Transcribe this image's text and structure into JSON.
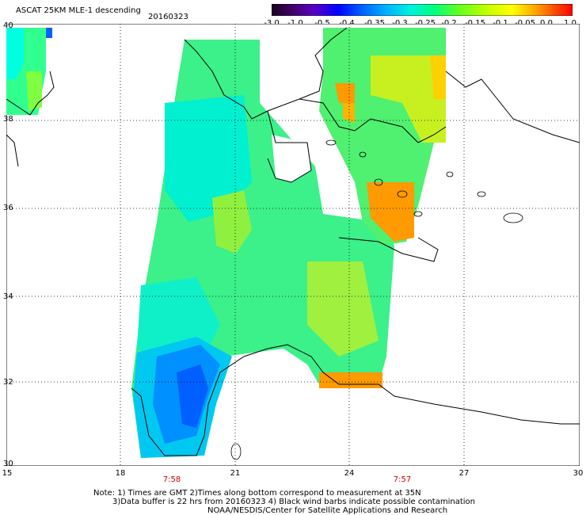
{
  "header": {
    "title": "ASCAT 25KM MLE-1 descending",
    "date": "20160323"
  },
  "colorbar": {
    "labels": [
      "-3.0",
      "-1.0",
      "-0.5",
      "-0.4",
      "-0.35",
      "-0.3",
      "-0.25",
      "-0.2",
      "-0.15",
      "-0.1",
      "-0.05",
      "0.0",
      "1.0"
    ],
    "colors": [
      "#2a0030",
      "#5a00a0",
      "#0000ff",
      "#0050ff",
      "#0096ff",
      "#00d8ff",
      "#00ffb0",
      "#40ff40",
      "#a0ff20",
      "#ffff00",
      "#ffb000",
      "#ff5000",
      "#ff0000"
    ]
  },
  "map": {
    "x_ticks": [
      "15",
      "18",
      "21",
      "24",
      "27",
      "30"
    ],
    "y_ticks": [
      "40",
      "38",
      "36",
      "34",
      "32",
      "30"
    ],
    "times": [
      "7:58",
      "7:57"
    ]
  },
  "footer": {
    "line1": "Note: 1) Times are GMT 2)Times along bottom correspond to measurement at 35N",
    "line2": "3)Data buffer is 22 hrs from 20160323 4) Black wind barbs indicate possible contamination",
    "line3": "NOAA/NESDIS/Center for Satellite Applications and Research"
  }
}
